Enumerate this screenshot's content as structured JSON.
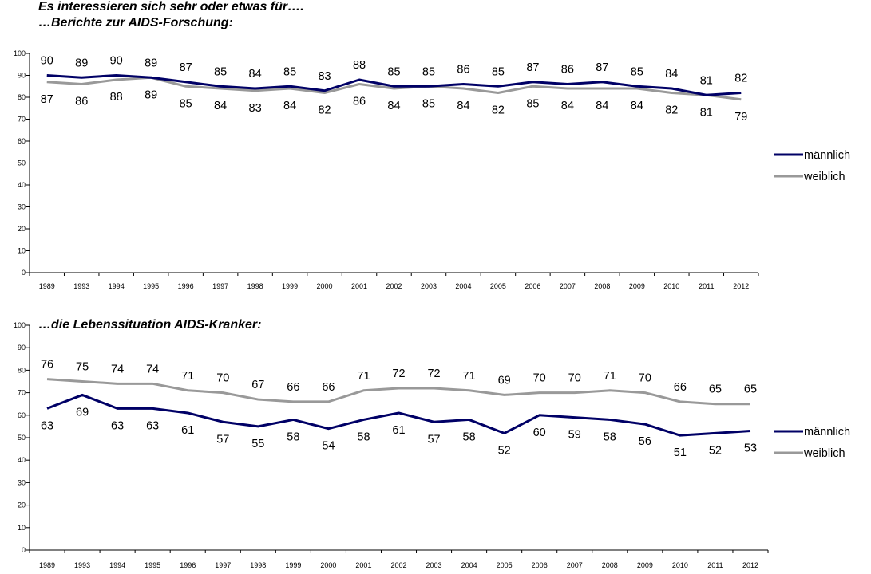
{
  "headings": {
    "line1": "Es interessieren sich sehr oder etwas für….",
    "line2": "…Berichte zur AIDS-Forschung:",
    "line3": "…die Lebenssituation AIDS-Kranker:"
  },
  "chart_data": [
    {
      "type": "line",
      "x": [
        "1989",
        "1993",
        "1994",
        "1995",
        "1996",
        "1997",
        "1998",
        "1999",
        "2000",
        "2001",
        "2002",
        "2003",
        "2004",
        "2005",
        "2006",
        "2007",
        "2008",
        "2009",
        "2010",
        "2011",
        "2012"
      ],
      "ylim": [
        0,
        100
      ],
      "yticks": [
        0,
        10,
        20,
        30,
        40,
        50,
        60,
        70,
        80,
        90,
        100
      ],
      "grid": false,
      "legend": "right",
      "series": [
        {
          "name": "männlich",
          "color": "#000066",
          "values": [
            90,
            89,
            90,
            89,
            87,
            85,
            84,
            85,
            83,
            88,
            85,
            85,
            86,
            85,
            87,
            86,
            87,
            85,
            84,
            81,
            82
          ],
          "labels_pos": "above"
        },
        {
          "name": "weiblich",
          "color": "#999999",
          "values": [
            87,
            86,
            88,
            89,
            85,
            84,
            83,
            84,
            82,
            86,
            84,
            85,
            84,
            82,
            85,
            84,
            84,
            84,
            82,
            81,
            79
          ],
          "labels_pos": "below"
        }
      ]
    },
    {
      "type": "line",
      "x": [
        "1989",
        "1993",
        "1994",
        "1995",
        "1996",
        "1997",
        "1998",
        "1999",
        "2000",
        "2001",
        "2002",
        "2003",
        "2004",
        "2005",
        "2006",
        "2007",
        "2008",
        "2009",
        "2010",
        "2011",
        "2012"
      ],
      "ylim": [
        0,
        100
      ],
      "yticks": [
        0,
        10,
        20,
        30,
        40,
        50,
        60,
        70,
        80,
        90,
        100
      ],
      "grid": false,
      "legend": "right",
      "series": [
        {
          "name": "männlich",
          "color": "#000066",
          "values": [
            63,
            69,
            63,
            63,
            61,
            57,
            55,
            58,
            54,
            58,
            61,
            57,
            58,
            52,
            60,
            59,
            58,
            56,
            51,
            52,
            53
          ],
          "labels_pos": "below"
        },
        {
          "name": "weiblich",
          "color": "#999999",
          "values": [
            76,
            75,
            74,
            74,
            71,
            70,
            67,
            66,
            66,
            71,
            72,
            72,
            71,
            69,
            70,
            70,
            71,
            70,
            66,
            65,
            65
          ],
          "labels_pos": "above"
        }
      ]
    }
  ]
}
